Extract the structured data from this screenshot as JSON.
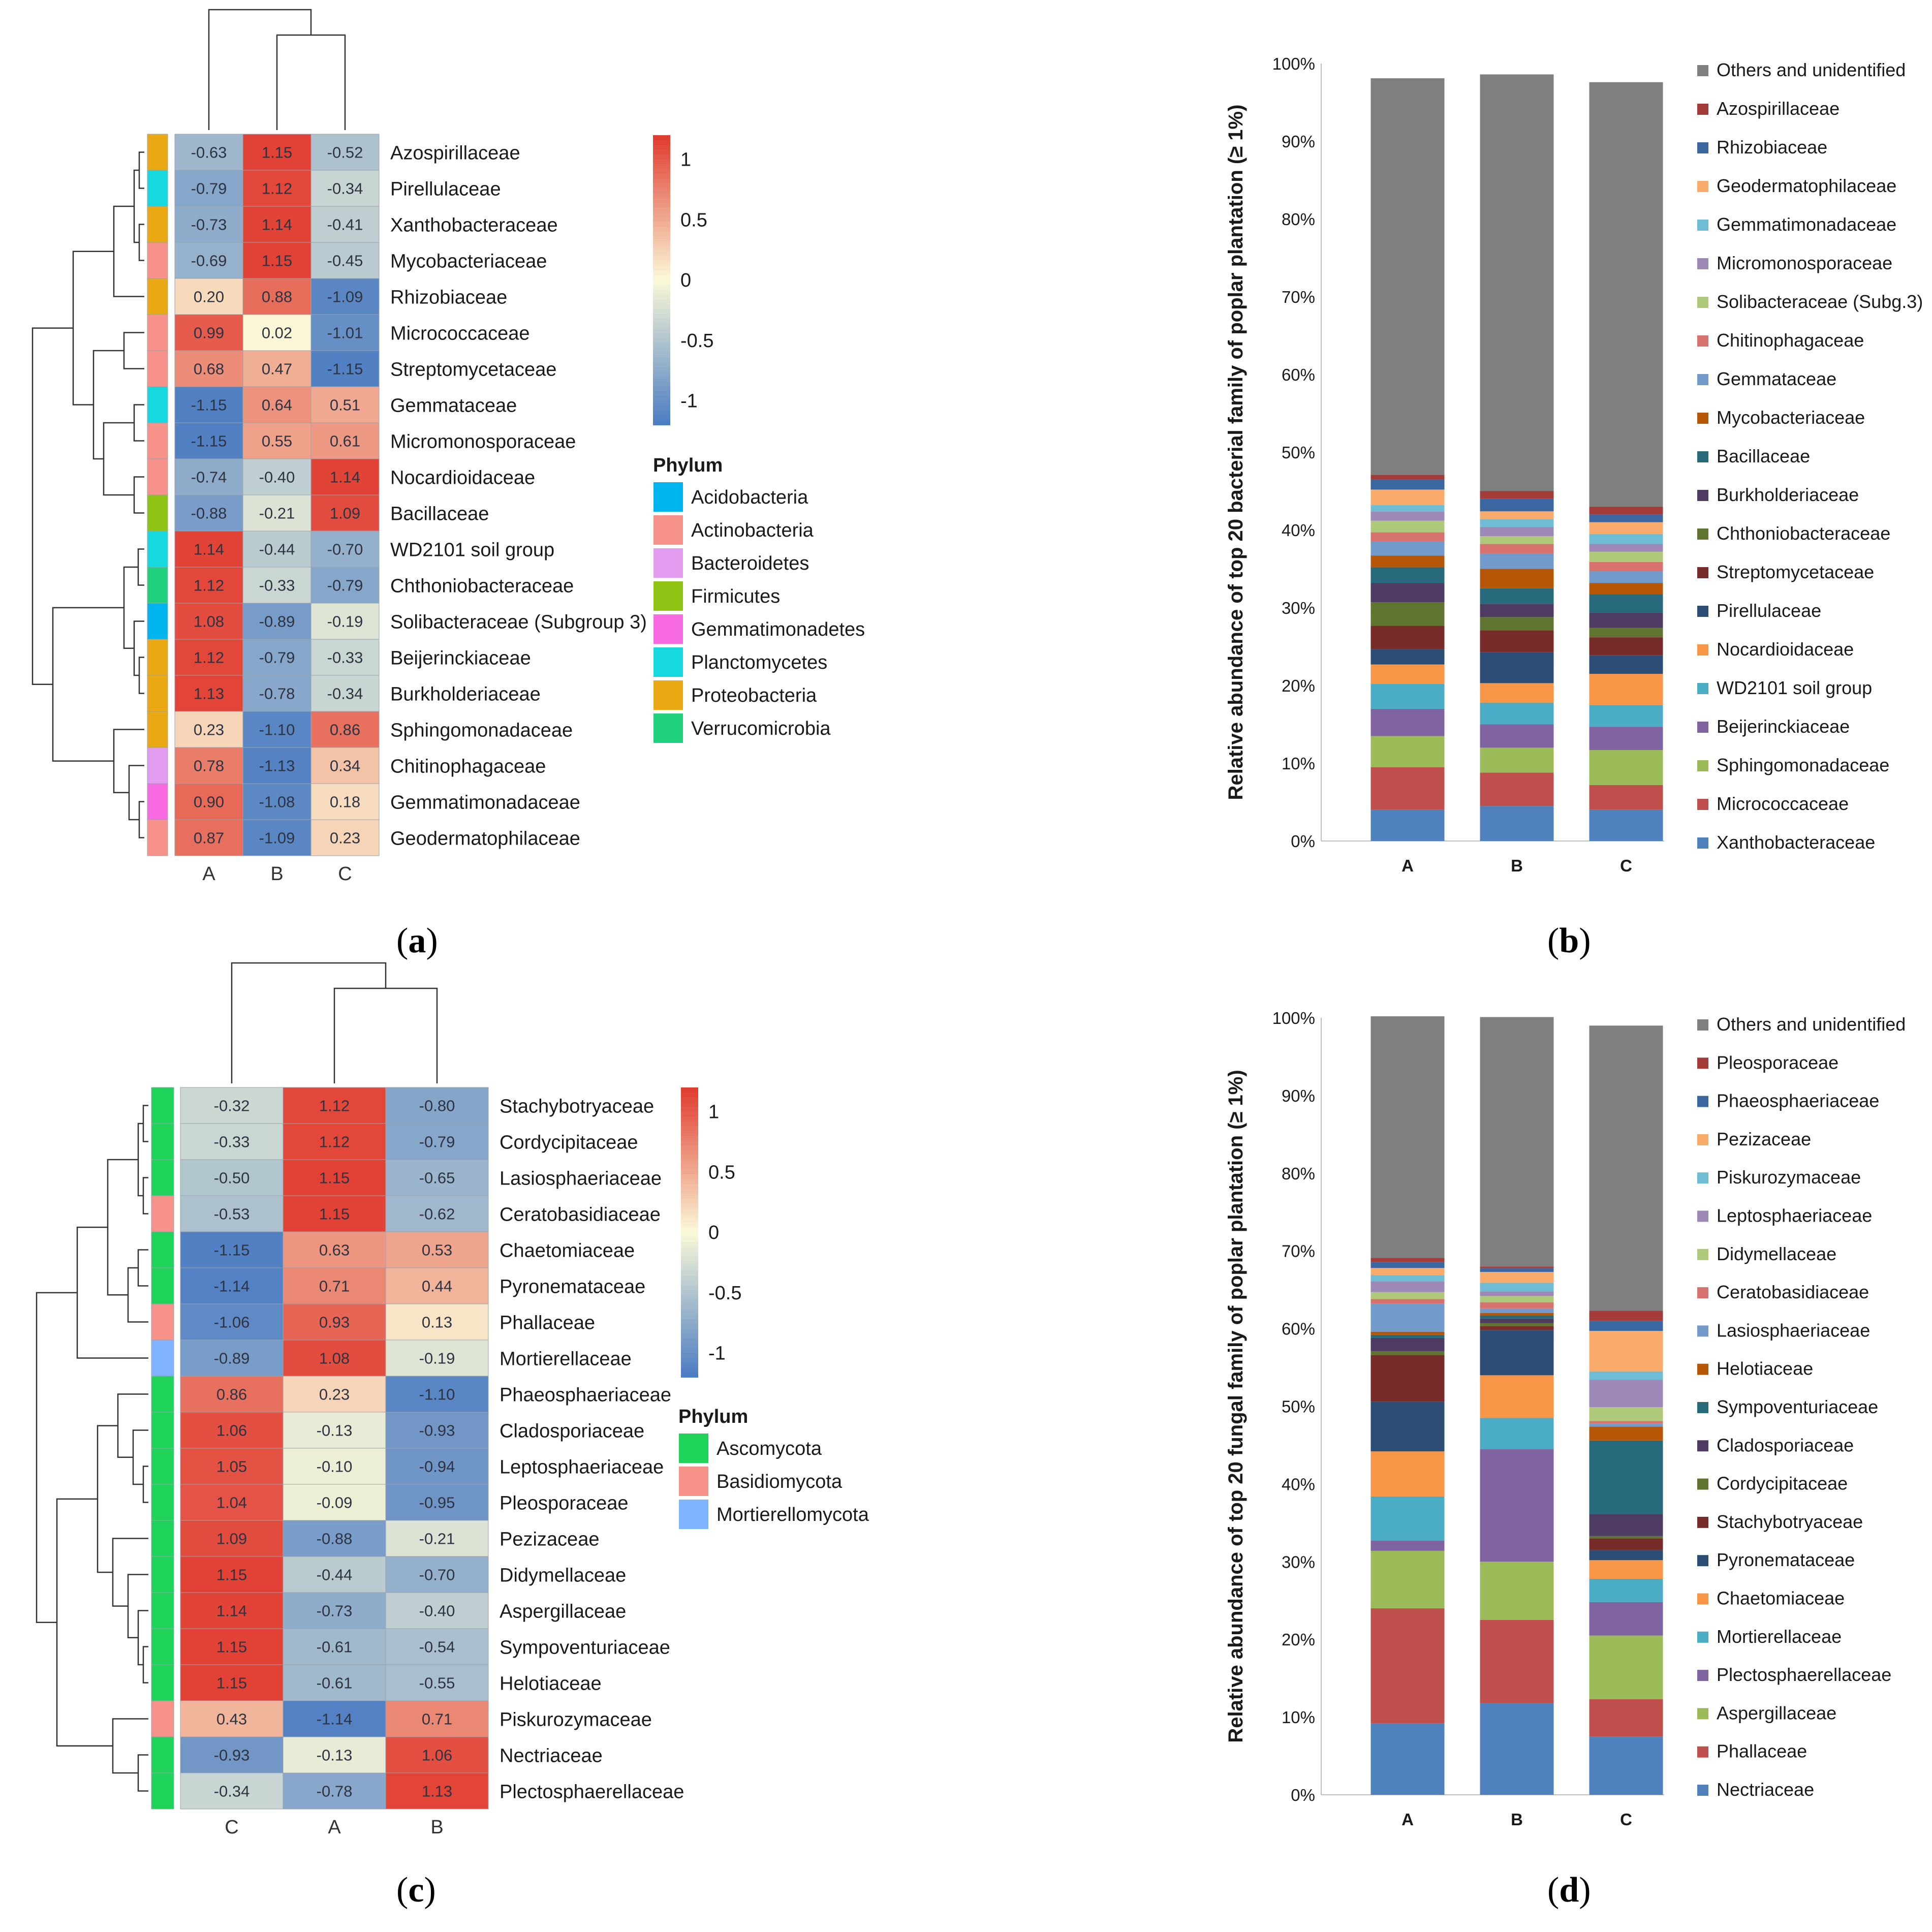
{
  "panels": {
    "a": {
      "label_open": "(",
      "label_letter": "a",
      "label_close": ")"
    },
    "b": {
      "label_open": "(",
      "label_letter": "b",
      "label_close": ")"
    },
    "c": {
      "label_open": "(",
      "label_letter": "c",
      "label_close": ")"
    },
    "d": {
      "label_open": "(",
      "label_letter": "d",
      "label_close": ")"
    }
  },
  "colors": {
    "heat_low": "#4a7bc2",
    "heat_mid": "#fbf9d8",
    "heat_high": "#e03a2e"
  },
  "chart_data": [
    {
      "id": "a",
      "type": "heatmap",
      "columns": [
        "A",
        "B",
        "C"
      ],
      "rows": [
        "Azospirillaceae",
        "Pirellulaceae",
        "Xanthobacteraceae",
        "Mycobacteriaceae",
        "Rhizobiaceae",
        "Micrococcaceae",
        "Streptomycetaceae",
        "Gemmataceae",
        "Micromonosporaceae",
        "Nocardioidaceae",
        "Bacillaceae",
        "WD2101 soil group",
        "Chthoniobacteraceae",
        "Solibacteraceae (Subgroup 3)",
        "Beijerinckiaceae",
        "Burkholderiaceae",
        "Sphingomonadaceae",
        "Chitinophagaceae",
        "Gemmatimonadaceae",
        "Geodermatophilaceae"
      ],
      "values": [
        [
          "-0.63",
          "1.15",
          "-0.52"
        ],
        [
          "-0.79",
          "1.12",
          "-0.34"
        ],
        [
          "-0.73",
          "1.14",
          "-0.41"
        ],
        [
          "-0.69",
          "1.15",
          "-0.45"
        ],
        [
          "0.20",
          "0.88",
          "-1.09"
        ],
        [
          "0.99",
          "0.02",
          "-1.01"
        ],
        [
          "0.68",
          "0.47",
          "-1.15"
        ],
        [
          "-1.15",
          "0.64",
          "0.51"
        ],
        [
          "-1.15",
          "0.55",
          "0.61"
        ],
        [
          "-0.74",
          "-0.40",
          "1.14"
        ],
        [
          "-0.88",
          "-0.21",
          "1.09"
        ],
        [
          "1.14",
          "-0.44",
          "-0.70"
        ],
        [
          "1.12",
          "-0.33",
          "-0.79"
        ],
        [
          "1.08",
          "-0.89",
          "-0.19"
        ],
        [
          "1.12",
          "-0.79",
          "-0.33"
        ],
        [
          "1.13",
          "-0.78",
          "-0.34"
        ],
        [
          "0.23",
          "-1.10",
          "0.86"
        ],
        [
          "0.78",
          "-1.13",
          "0.34"
        ],
        [
          "0.90",
          "-1.08",
          "0.18"
        ],
        [
          "0.87",
          "-1.09",
          "0.23"
        ]
      ],
      "row_phylum": [
        "Proteobacteria",
        "Planctomycetes",
        "Proteobacteria",
        "Actinobacteria",
        "Proteobacteria",
        "Actinobacteria",
        "Actinobacteria",
        "Planctomycetes",
        "Actinobacteria",
        "Actinobacteria",
        "Firmicutes",
        "Planctomycetes",
        "Verrucomicrobia",
        "Acidobacteria",
        "Proteobacteria",
        "Proteobacteria",
        "Proteobacteria",
        "Bacteroidetes",
        "Gemmatimonadetes",
        "Actinobacteria"
      ],
      "scale": {
        "range": [
          -1.2,
          1.2
        ],
        "ticks": [
          "1",
          "0.5",
          "0",
          "-0.5",
          "-1"
        ]
      },
      "legend_title": "Phylum",
      "phyla": [
        {
          "name": "Acidobacteria",
          "color": "#00b4f0"
        },
        {
          "name": "Actinobacteria",
          "color": "#f7928a"
        },
        {
          "name": "Bacteroidetes",
          "color": "#e39df0"
        },
        {
          "name": "Firmicutes",
          "color": "#8fc414"
        },
        {
          "name": "Gemmatimonadetes",
          "color": "#f86ae0"
        },
        {
          "name": "Planctomycetes",
          "color": "#16d9df"
        },
        {
          "name": "Proteobacteria",
          "color": "#eaa912"
        },
        {
          "name": "Verrucomicrobia",
          "color": "#22d17e"
        }
      ]
    },
    {
      "id": "b",
      "type": "bar",
      "stacked": true,
      "categories": [
        "A",
        "B",
        "C"
      ],
      "ylabel": "Relative abundance of top 20 bacterial family of poplar plantation (≥ 1%)",
      "ylim": [
        0,
        100
      ],
      "yticks": [
        "0%",
        "10%",
        "20%",
        "30%",
        "40%",
        "50%",
        "60%",
        "70%",
        "80%",
        "90%",
        "100%"
      ],
      "legend_placement": "right",
      "series": [
        {
          "name": "Xanthobacteraceae",
          "color": "#4f81bd",
          "values": [
            4.0,
            4.5,
            4.0
          ]
        },
        {
          "name": "Micrococcaceae",
          "color": "#c0504d",
          "values": [
            5.5,
            4.3,
            3.2
          ]
        },
        {
          "name": "Sphingomonadaceae",
          "color": "#9bbb59",
          "values": [
            4.0,
            3.2,
            4.5
          ]
        },
        {
          "name": "Beijerinckiaceae",
          "color": "#8064a2",
          "values": [
            3.5,
            3.0,
            3.0
          ]
        },
        {
          "name": "WD2101 soil group",
          "color": "#4bacc6",
          "values": [
            3.2,
            2.8,
            2.8
          ]
        },
        {
          "name": "Nocardioidaceae",
          "color": "#f79646",
          "values": [
            2.5,
            2.5,
            4.0
          ]
        },
        {
          "name": "Pirellulaceae",
          "color": "#2c4d75",
          "values": [
            2.0,
            4.0,
            2.4
          ]
        },
        {
          "name": "Streptomycetaceae",
          "color": "#772c2a",
          "values": [
            3.0,
            2.8,
            2.3
          ]
        },
        {
          "name": "Chthoniobacteraceae",
          "color": "#5f7530",
          "values": [
            3.0,
            1.7,
            1.2
          ]
        },
        {
          "name": "Burkholderiaceae",
          "color": "#4d3b62",
          "values": [
            2.5,
            1.7,
            2.0
          ]
        },
        {
          "name": "Bacillaceae",
          "color": "#276a7c",
          "values": [
            2.0,
            2.0,
            2.3
          ]
        },
        {
          "name": "Mycobacteriaceae",
          "color": "#b65708",
          "values": [
            1.5,
            2.5,
            1.5
          ]
        },
        {
          "name": "Gemmataceae",
          "color": "#729aca",
          "values": [
            1.8,
            2.0,
            1.5
          ]
        },
        {
          "name": "Chitinophagaceae",
          "color": "#d7726f",
          "values": [
            1.2,
            1.2,
            1.2
          ]
        },
        {
          "name": "Solibacteraceae (Subg.3)",
          "color": "#afc97a",
          "values": [
            1.5,
            1.0,
            1.3
          ]
        },
        {
          "name": "Micromonosporaceae",
          "color": "#9d88b7",
          "values": [
            1.2,
            1.2,
            1.0
          ]
        },
        {
          "name": "Gemmatimonadaceae",
          "color": "#6fbdd4",
          "values": [
            0.8,
            1.0,
            1.3
          ]
        },
        {
          "name": "Geodermatophilaceae",
          "color": "#f9ab6b",
          "values": [
            2.0,
            1.0,
            1.5
          ]
        },
        {
          "name": "Rhizobiaceae",
          "color": "#3a67a0",
          "values": [
            1.3,
            1.6,
            1.0
          ]
        },
        {
          "name": "Azospirillaceae",
          "color": "#a33b39",
          "values": [
            0.6,
            1.0,
            1.0
          ]
        },
        {
          "name": "Others and unidentified",
          "color": "#7f7f7f",
          "values": [
            51.0,
            53.6,
            54.6
          ]
        }
      ]
    },
    {
      "id": "c",
      "type": "heatmap",
      "columns": [
        "C",
        "A",
        "B"
      ],
      "rows": [
        "Stachybotryaceae",
        "Cordycipitaceae",
        "Lasiosphaeriaceae",
        "Ceratobasidiaceae",
        "Chaetomiaceae",
        "Pyronemataceae",
        "Phallaceae",
        "Mortierellaceae",
        "Phaeosphaeriaceae",
        "Cladosporiaceae",
        "Leptosphaeriaceae",
        "Pleosporaceae",
        "Pezizaceae",
        "Didymellaceae",
        "Aspergillaceae",
        "Sympoventuriaceae",
        "Helotiaceae",
        "Piskurozymaceae",
        "Nectriaceae",
        "Plectosphaerellaceae"
      ],
      "values": [
        [
          "-0.32",
          "1.12",
          "-0.80"
        ],
        [
          "-0.33",
          "1.12",
          "-0.79"
        ],
        [
          "-0.50",
          "1.15",
          "-0.65"
        ],
        [
          "-0.53",
          "1.15",
          "-0.62"
        ],
        [
          "-1.15",
          "0.63",
          "0.53"
        ],
        [
          "-1.14",
          "0.71",
          "0.44"
        ],
        [
          "-1.06",
          "0.93",
          "0.13"
        ],
        [
          "-0.89",
          "1.08",
          "-0.19"
        ],
        [
          "0.86",
          "0.23",
          "-1.10"
        ],
        [
          "1.06",
          "-0.13",
          "-0.93"
        ],
        [
          "1.05",
          "-0.10",
          "-0.94"
        ],
        [
          "1.04",
          "-0.09",
          "-0.95"
        ],
        [
          "1.09",
          "-0.88",
          "-0.21"
        ],
        [
          "1.15",
          "-0.44",
          "-0.70"
        ],
        [
          "1.14",
          "-0.73",
          "-0.40"
        ],
        [
          "1.15",
          "-0.61",
          "-0.54"
        ],
        [
          "1.15",
          "-0.61",
          "-0.55"
        ],
        [
          "0.43",
          "-1.14",
          "0.71"
        ],
        [
          "-0.93",
          "-0.13",
          "1.06"
        ],
        [
          "-0.34",
          "-0.78",
          "1.13"
        ]
      ],
      "row_phylum": [
        "Ascomycota",
        "Ascomycota",
        "Ascomycota",
        "Basidiomycota",
        "Ascomycota",
        "Ascomycota",
        "Basidiomycota",
        "Mortierellomycota",
        "Ascomycota",
        "Ascomycota",
        "Ascomycota",
        "Ascomycota",
        "Ascomycota",
        "Ascomycota",
        "Ascomycota",
        "Ascomycota",
        "Ascomycota",
        "Basidiomycota",
        "Ascomycota",
        "Ascomycota"
      ],
      "scale": {
        "range": [
          -1.2,
          1.2
        ],
        "ticks": [
          "1",
          "0.5",
          "0",
          "-0.5",
          "-1"
        ]
      },
      "legend_title": "Phylum",
      "phyla": [
        {
          "name": "Ascomycota",
          "color": "#1fd35a"
        },
        {
          "name": "Basidiomycota",
          "color": "#f7928a"
        },
        {
          "name": "Mortierellomycota",
          "color": "#7fb3ff"
        }
      ]
    },
    {
      "id": "d",
      "type": "bar",
      "stacked": true,
      "categories": [
        "A",
        "B",
        "C"
      ],
      "ylabel": "Relative abundance of top 20 fungal family of poplar plantation (≥ 1%)",
      "ylim": [
        0,
        100
      ],
      "yticks": [
        "0%",
        "10%",
        "20%",
        "30%",
        "40%",
        "50%",
        "60%",
        "70%",
        "80%",
        "90%",
        "100%"
      ],
      "legend_placement": "right",
      "series": [
        {
          "name": "Nectriaceae",
          "color": "#4f81bd",
          "values": [
            9.2,
            11.8,
            7.5
          ]
        },
        {
          "name": "Phallaceae",
          "color": "#c0504d",
          "values": [
            14.8,
            10.7,
            4.8
          ]
        },
        {
          "name": "Aspergillaceae",
          "color": "#9bbb59",
          "values": [
            7.4,
            7.5,
            8.2
          ]
        },
        {
          "name": "Plectosphaerellaceae",
          "color": "#8064a2",
          "values": [
            1.3,
            14.5,
            4.3
          ]
        },
        {
          "name": "Mortierellaceae",
          "color": "#4bacc6",
          "values": [
            5.7,
            4.0,
            3.0
          ]
        },
        {
          "name": "Chaetomiaceae",
          "color": "#f79646",
          "values": [
            5.8,
            5.5,
            2.4
          ]
        },
        {
          "name": "Pyronemataceae",
          "color": "#2c4d75",
          "values": [
            6.4,
            5.8,
            1.3
          ]
        },
        {
          "name": "Stachybotryaceae",
          "color": "#772c2a",
          "values": [
            6.0,
            0.5,
            1.5
          ]
        },
        {
          "name": "Cordycipitaceae",
          "color": "#5f7530",
          "values": [
            0.5,
            0.4,
            0.3
          ]
        },
        {
          "name": "Cladosporiaceae",
          "color": "#4d3b62",
          "values": [
            1.7,
            0.6,
            2.8
          ]
        },
        {
          "name": "Sympoventuriaceae",
          "color": "#276a7c",
          "values": [
            0.4,
            0.4,
            9.5
          ]
        },
        {
          "name": "Helotiaceae",
          "color": "#b65708",
          "values": [
            0.4,
            0.3,
            1.8
          ]
        },
        {
          "name": "Lasiosphaeriaceae",
          "color": "#729aca",
          "values": [
            3.6,
            0.6,
            0.4
          ]
        },
        {
          "name": "Ceratobasidiaceae",
          "color": "#d7726f",
          "values": [
            0.6,
            0.8,
            0.3
          ]
        },
        {
          "name": "Didymellaceae",
          "color": "#afc97a",
          "values": [
            0.9,
            0.8,
            1.8
          ]
        },
        {
          "name": "Leptosphaeriaceae",
          "color": "#9d88b7",
          "values": [
            1.4,
            0.6,
            3.5
          ]
        },
        {
          "name": "Piskurozymaceae",
          "color": "#6fbdd4",
          "values": [
            0.8,
            1.1,
            1.1
          ]
        },
        {
          "name": "Pezizaceae",
          "color": "#f9ab6b",
          "values": [
            0.9,
            1.4,
            5.2
          ]
        },
        {
          "name": "Phaeosphaeriaceae",
          "color": "#3a67a0",
          "values": [
            0.8,
            0.5,
            1.3
          ]
        },
        {
          "name": "Pleosporaceae",
          "color": "#a33b39",
          "values": [
            0.5,
            0.2,
            1.3
          ]
        },
        {
          "name": "Others and unidentified",
          "color": "#7f7f7f",
          "values": [
            31.1,
            32.1,
            36.7
          ]
        }
      ]
    }
  ]
}
